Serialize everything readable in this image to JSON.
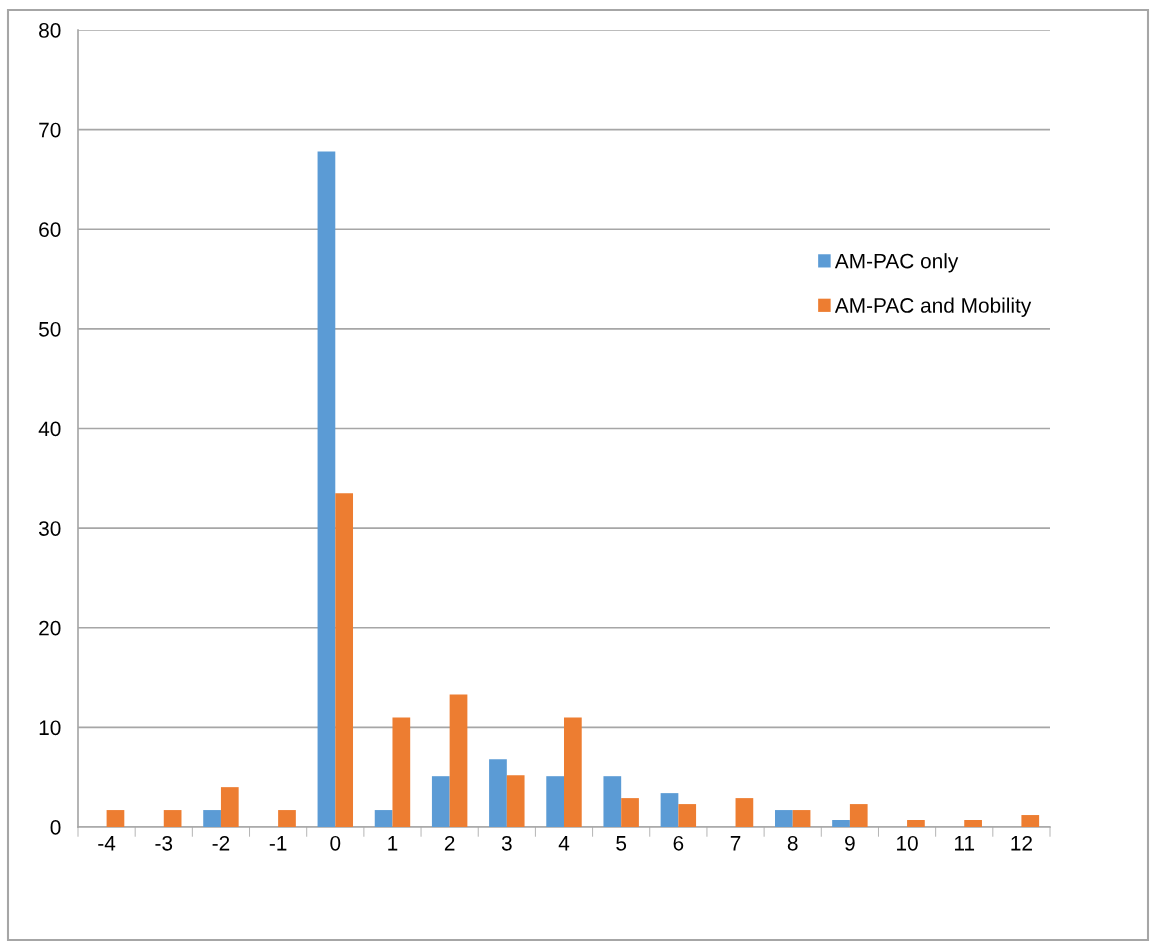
{
  "chart_data": {
    "type": "bar",
    "categories": [
      "-4",
      "-3",
      "-2",
      "-1",
      "0",
      "1",
      "2",
      "3",
      "4",
      "5",
      "6",
      "7",
      "8",
      "9",
      "10",
      "11",
      "12"
    ],
    "series": [
      {
        "name": "AM-PAC only",
        "color": "#5b9bd5",
        "values": [
          0,
          0,
          1.7,
          0,
          67.8,
          1.7,
          5.1,
          6.8,
          5.1,
          5.1,
          3.4,
          0,
          1.7,
          0.7,
          0,
          0,
          0
        ]
      },
      {
        "name": "AM-PAC and Mobility",
        "color": "#ed7d31",
        "values": [
          1.7,
          1.7,
          4.0,
          1.7,
          33.5,
          11.0,
          13.3,
          5.2,
          11.0,
          2.9,
          2.3,
          2.9,
          1.7,
          2.3,
          0.7,
          0.7,
          1.2
        ]
      }
    ],
    "ylim": [
      0,
      80
    ],
    "yticks": [
      0,
      10,
      20,
      30,
      40,
      50,
      60,
      70,
      80
    ],
    "grid": "y",
    "legend": "right"
  }
}
